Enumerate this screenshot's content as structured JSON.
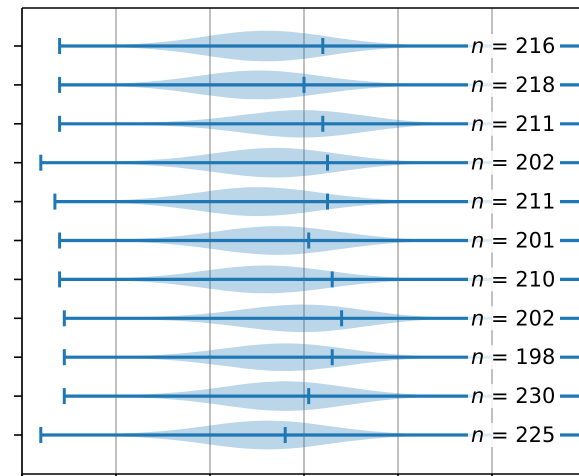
{
  "chart_data": {
    "type": "violin",
    "orientation": "horizontal",
    "title": "",
    "xlabel": "",
    "ylabel": "",
    "grid": "vertical",
    "colors": {
      "body": "#1f77b4",
      "body_alpha": 0.3,
      "lines": "#1f77b4",
      "grid": "#b0b0b0"
    },
    "violins": [
      {
        "n": 216,
        "min": 0.08,
        "median": 0.64,
        "max": 1.0,
        "peak": 0.52,
        "width": 0.9
      },
      {
        "n": 218,
        "min": 0.08,
        "median": 0.6,
        "max": 1.0,
        "peak": 0.5,
        "width": 0.85
      },
      {
        "n": 211,
        "min": 0.08,
        "median": 0.64,
        "max": 1.0,
        "peak": 0.62,
        "width": 0.85
      },
      {
        "n": 202,
        "min": 0.04,
        "median": 0.65,
        "max": 1.0,
        "peak": 0.55,
        "width": 0.88
      },
      {
        "n": 211,
        "min": 0.07,
        "median": 0.65,
        "max": 1.0,
        "peak": 0.5,
        "width": 0.85
      },
      {
        "n": 201,
        "min": 0.08,
        "median": 0.61,
        "max": 1.0,
        "peak": 0.55,
        "width": 0.85
      },
      {
        "n": 210,
        "min": 0.08,
        "median": 0.66,
        "max": 1.0,
        "peak": 0.52,
        "width": 0.82
      },
      {
        "n": 202,
        "min": 0.09,
        "median": 0.68,
        "max": 1.0,
        "peak": 0.62,
        "width": 0.85
      },
      {
        "n": 198,
        "min": 0.09,
        "median": 0.66,
        "max": 1.0,
        "peak": 0.57,
        "width": 0.82
      },
      {
        "n": 230,
        "min": 0.09,
        "median": 0.61,
        "max": 1.0,
        "peak": 0.57,
        "width": 0.88
      },
      {
        "n": 225,
        "min": 0.04,
        "median": 0.56,
        "max": 1.0,
        "peak": 0.53,
        "width": 0.85
      }
    ],
    "xlim": [
      -0.1,
      1.1
    ],
    "x_gridlines": [
      0.0,
      0.2,
      0.4,
      0.6,
      0.8,
      1.0
    ],
    "n_label_prefix": "n",
    "n_label_sep": " = "
  }
}
